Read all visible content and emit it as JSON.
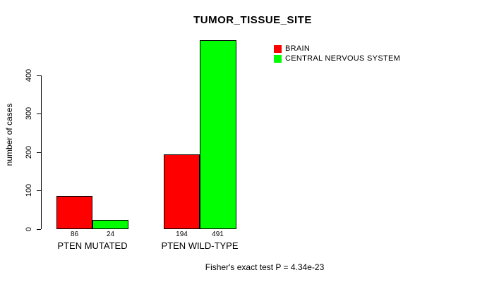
{
  "chart_data": {
    "type": "bar",
    "title": "TUMOR_TISSUE_SITE",
    "xlabel": "",
    "ylabel": "number of cases",
    "categories": [
      "PTEN MUTATED",
      "PTEN WILD-TYPE"
    ],
    "series": [
      {
        "name": "BRAIN",
        "color": "#ff0000",
        "values": [
          86,
          194
        ]
      },
      {
        "name": "CENTRAL NERVOUS SYSTEM",
        "color": "#00ff00",
        "values": [
          24,
          491
        ]
      }
    ],
    "bar_value_labels": [
      [
        "86",
        "24"
      ],
      [
        "194",
        "491"
      ]
    ],
    "yticks": [
      0,
      100,
      200,
      300,
      400
    ],
    "ylim": [
      0,
      500
    ],
    "grid": false,
    "legend_position": "top-right"
  },
  "annotations": {
    "footer": "Fisher's exact test P = 4.34e-23"
  }
}
